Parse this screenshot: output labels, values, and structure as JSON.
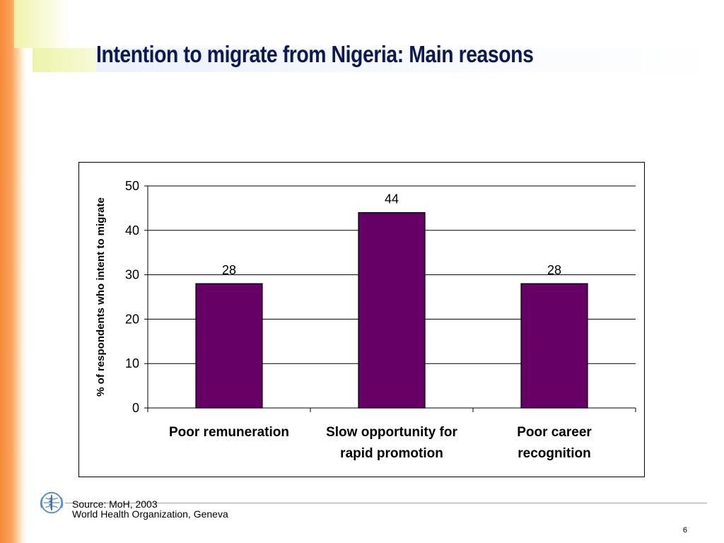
{
  "slide": {
    "title": "Intention to migrate from Nigeria: Main reasons",
    "source": "Source: MoH, 2003",
    "organization": "World Health Organization, Geneva",
    "page_number": "6",
    "logo": "who-emblem-icon"
  },
  "colors": {
    "bar": "#660066",
    "title": "#0b1a55",
    "stripe": "#f58b3c"
  },
  "chart_data": {
    "type": "bar",
    "categories": [
      [
        "Poor remuneration"
      ],
      [
        "Slow opportunity for",
        "rapid promotion"
      ],
      [
        "Poor career",
        "recognition"
      ]
    ],
    "values": [
      28,
      44,
      28
    ],
    "data_labels": [
      "28",
      "44",
      "28"
    ],
    "ylabel": "% of respondents who intent to migrate",
    "ylim": [
      0,
      50
    ],
    "yticks": [
      0,
      10,
      20,
      30,
      40,
      50
    ],
    "grid": true,
    "legend": "none"
  }
}
